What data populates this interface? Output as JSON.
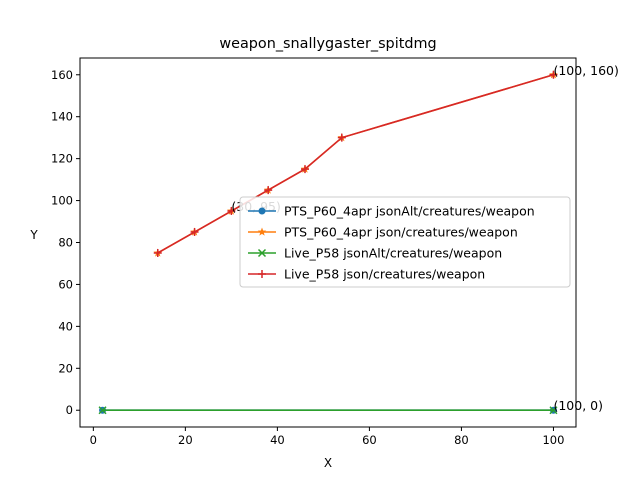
{
  "chart_data": {
    "type": "line",
    "title": "weapon_snallygaster_spitdmg",
    "xlabel": "X",
    "ylabel": "Y",
    "xlim": [
      -2.9,
      104.9
    ],
    "ylim": [
      -8,
      168
    ],
    "xticks": [
      0,
      20,
      40,
      60,
      80,
      100
    ],
    "yticks": [
      0,
      20,
      40,
      60,
      80,
      100,
      120,
      140,
      160
    ],
    "grid": false,
    "legend_position": "center-right",
    "series": [
      {
        "name": "PTS_P60_4apr jsonAlt/creatures/weapon",
        "color": "#1f77b4",
        "marker": "circle",
        "x": [
          2,
          100
        ],
        "y": [
          0,
          0
        ]
      },
      {
        "name": "PTS_P60_4apr json/creatures/weapon",
        "color": "#ff7f0e",
        "marker": "star",
        "x": [
          14,
          22,
          30,
          38,
          46,
          54,
          100
        ],
        "y": [
          75,
          85,
          95,
          105,
          115,
          130,
          160
        ]
      },
      {
        "name": "Live_P58 jsonAlt/creatures/weapon",
        "color": "#2ca02c",
        "marker": "x",
        "x": [
          2,
          100
        ],
        "y": [
          0,
          0
        ]
      },
      {
        "name": "Live_P58 json/creatures/weapon",
        "color": "#d62728",
        "marker": "plus",
        "x": [
          14,
          22,
          30,
          38,
          46,
          54,
          100
        ],
        "y": [
          75,
          85,
          95,
          105,
          115,
          130,
          160
        ]
      }
    ],
    "annotations": [
      {
        "text": "(100, 0)",
        "x": 100,
        "y": 0
      },
      {
        "text": "(30, 95)",
        "x": 30,
        "y": 95
      },
      {
        "text": "(100, 160)",
        "x": 100,
        "y": 160
      }
    ]
  }
}
